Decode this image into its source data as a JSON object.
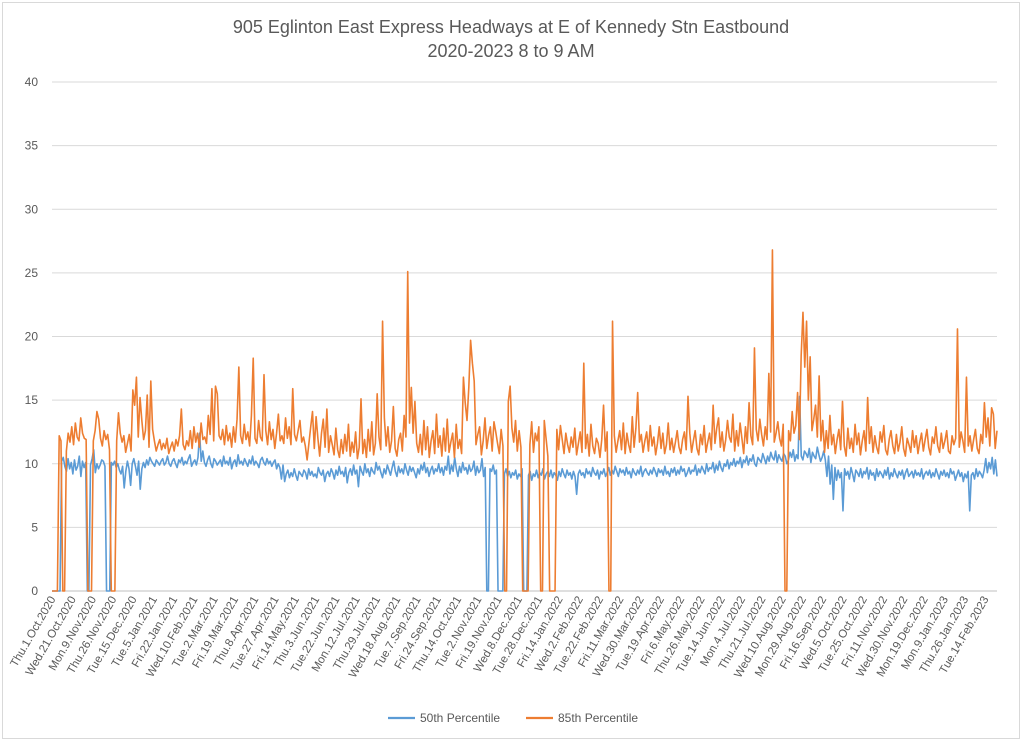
{
  "chart_data": {
    "type": "line",
    "title": "905 Eglinton East Express Headways at E of Kennedy Stn Eastbound",
    "subtitle": "2020-2023 8 to 9 AM",
    "xlabel": "",
    "ylabel": "",
    "ylim": [
      0,
      40
    ],
    "yticks": [
      0,
      5,
      10,
      15,
      20,
      25,
      30,
      35,
      40
    ],
    "grid": true,
    "legend_position": "bottom",
    "x_tick_labels": [
      "Thu.1.Oct.2020",
      "Wed.21.Oct.2020",
      "Mon.9.Nov.2020",
      "Thu.26.Nov.2020",
      "Tue.15.Dec.2020",
      "Tue.5.Jan.2021",
      "Fri.22.Jan.2021",
      "Wed.10.Feb.2021",
      "Tue.2.Mar.2021",
      "Fri.19.Mar.2021",
      "Thu.8.Apr.2021",
      "Tue.27.Apr.2021",
      "Fri.14.May.2021",
      "Thu.3.Jun.2021",
      "Tue.22.Jun.2021",
      "Mon.12.Jul.2021",
      "Thu.29.Jul.2021",
      "Wed.18.Aug.2021",
      "Tue.7.Sep.2021",
      "Fri.24.Sep.2021",
      "Thu.14.Oct.2021",
      "Tue.2.Nov.2021",
      "Fri.19.Nov.2021",
      "Wed.8.Dec.2021",
      "Tue.28.Dec.2021",
      "Fri.14.Jan.2022",
      "Wed.2.Feb.2022",
      "Tue.22.Feb.2022",
      "Fri.11.Mar.2022",
      "Wed.30.Mar.2022",
      "Tue.19.Apr.2022",
      "Fri.6.May.2022",
      "Thu.26.May.2022",
      "Tue.14.Jun.2022",
      "Mon.4.Jul.2022",
      "Thu.21.Jul.2022",
      "Wed.10.Aug.2022",
      "Mon.29.Aug.2022",
      "Fri.16.Sep.2022",
      "Wed.5.Oct.2022",
      "Tue.25.Oct.2022",
      "Fri.11.Nov.2022",
      "Wed.30.Nov.2022",
      "Mon.19.Dec.2022",
      "Mon.9.Jan.2023",
      "Thu.26.Jan.2023",
      "Tue.14.Feb.2023"
    ],
    "n_points": 560,
    "series": [
      {
        "name": "50th Percentile",
        "color": "#5b9bd5",
        "values": [
          0,
          0,
          0,
          0,
          0,
          0,
          10.2,
          10.5,
          9.8,
          9.4,
          10.4,
          9.6,
          10.1,
          9.2,
          10.3,
          9.5,
          9.8,
          10.6,
          9.0,
          10.2,
          9.7,
          10.1,
          0,
          0,
          9.9,
          10.4,
          11.1,
          9.3,
          10.0,
          9.6,
          9.9,
          10.3,
          10.2,
          9.8,
          0,
          0,
          0,
          10.1,
          9.9,
          10.2,
          9.7,
          10.0,
          9.5,
          9.2,
          9.8,
          8.1,
          9.4,
          10.2,
          9.6,
          8.3,
          10.0,
          10.4,
          9.8,
          9.1,
          10.2,
          8.0,
          9.6,
          10.1,
          9.7,
          10.3,
          9.9,
          10.5,
          10.2,
          10.0,
          9.8,
          10.3,
          10.1,
          9.9,
          10.2,
          10.4,
          9.9,
          10.1,
          10.6,
          10.0,
          9.8,
          10.2,
          10.4,
          10.0,
          9.7,
          10.3,
          10.1,
          10.5,
          9.9,
          10.2,
          10.0,
          10.4,
          10.7,
          9.8,
          10.1,
          10.3,
          9.9,
          10.5,
          12.4,
          10.2,
          11.0,
          10.1,
          9.8,
          10.3,
          10.6,
          10.0,
          9.7,
          10.4,
          10.2,
          9.9,
          10.1,
          10.3,
          9.8,
          10.6,
          10.0,
          10.2,
          9.9,
          10.5,
          9.6,
          10.1,
          10.3,
          9.8,
          10.7,
          10.0,
          10.2,
          9.9,
          10.4,
          10.1,
          9.8,
          10.3,
          10.0,
          10.6,
          9.9,
          10.2,
          10.0,
          9.7,
          10.3,
          10.5,
          10.1,
          9.9,
          10.4,
          10.0,
          10.2,
          9.8,
          10.1,
          10.3,
          9.6,
          10.0,
          9.7,
          8.8,
          9.9,
          8.6,
          9.2,
          9.5,
          8.9,
          9.3,
          9.0,
          9.6,
          9.1,
          8.7,
          9.4,
          9.2,
          9.0,
          9.5,
          9.3,
          8.8,
          9.6,
          9.1,
          9.4,
          9.0,
          9.2,
          8.9,
          9.7,
          9.3,
          9.1,
          9.5,
          8.6,
          9.2,
          9.4,
          9.0,
          9.6,
          9.3,
          8.8,
          9.5,
          9.1,
          9.8,
          9.2,
          9.4,
          9.0,
          9.7,
          8.5,
          9.3,
          9.6,
          9.1,
          9.9,
          9.2,
          9.5,
          8.2,
          9.8,
          9.4,
          9.1,
          10.0,
          9.3,
          9.6,
          9.0,
          9.7,
          9.4,
          9.2,
          10.1,
          9.5,
          9.8,
          9.3,
          8.9,
          9.6,
          9.2,
          9.9,
          9.5,
          9.1,
          9.7,
          10.2,
          9.4,
          9.0,
          9.8,
          9.3,
          9.6,
          9.2,
          10.0,
          9.5,
          9.1,
          9.8,
          9.4,
          9.7,
          9.3,
          8.9,
          9.6,
          9.2,
          9.9,
          9.5,
          10.1,
          9.3,
          9.7,
          9.0,
          9.5,
          9.8,
          9.2,
          9.6,
          9.4,
          10.0,
          9.3,
          9.7,
          9.1,
          9.8,
          9.5,
          10.6,
          9.2,
          9.9,
          9.4,
          10.5,
          9.6,
          9.0,
          9.8,
          9.3,
          10.1,
          9.5,
          9.7,
          9.2,
          9.9,
          9.4,
          9.6,
          10.2,
          9.1,
          9.8,
          9.3,
          9.5,
          10.4,
          9.0,
          9.7,
          0,
          0,
          9.6,
          9.4,
          9.9,
          9.2,
          9.5,
          0,
          0,
          0,
          0,
          9.2,
          9.6,
          9.0,
          9.4,
          8.9,
          9.3,
          9.1,
          9.5,
          8.8,
          9.2,
          9.0,
          9.6,
          0,
          0,
          0,
          9.1,
          9.4,
          8.7,
          9.2,
          9.0,
          9.5,
          8.9,
          9.3,
          9.1,
          9.6,
          8.8,
          9.2,
          9.4,
          9.0,
          9.5,
          8.9,
          9.3,
          9.1,
          8.7,
          9.4,
          9.0,
          9.6,
          9.2,
          8.9,
          9.5,
          9.1,
          9.3,
          8.8,
          9.4,
          9.0,
          7.6,
          9.2,
          9.5,
          9.1,
          9.3,
          8.9,
          9.6,
          9.2,
          9.4,
          9.0,
          9.7,
          9.3,
          9.1,
          9.5,
          8.8,
          9.4,
          9.2,
          9.6,
          9.0,
          9.3,
          9.7,
          9.1,
          9.5,
          9.2,
          9.8,
          9.4,
          9.0,
          9.6,
          9.3,
          9.5,
          9.1,
          9.7,
          9.2,
          9.4,
          8.9,
          9.6,
          9.3,
          9.1,
          9.5,
          9.2,
          9.8,
          9.0,
          9.4,
          9.6,
          9.3,
          9.1,
          9.5,
          9.2,
          9.7,
          9.4,
          9.0,
          9.6,
          9.3,
          9.5,
          9.1,
          9.8,
          9.2,
          9.4,
          9.0,
          9.6,
          9.3,
          9.7,
          9.1,
          9.5,
          9.2,
          9.8,
          9.4,
          9.6,
          9.0,
          9.3,
          9.7,
          9.2,
          9.5,
          9.4,
          9.9,
          9.1,
          9.6,
          9.3,
          9.8,
          9.5,
          9.2,
          10.0,
          9.4,
          9.7,
          9.6,
          10.1,
          9.3,
          9.9,
          9.5,
          10.2,
          9.7,
          9.4,
          10.0,
          9.8,
          10.3,
          9.6,
          10.1,
          9.9,
          10.4,
          9.8,
          10.2,
          10.0,
          10.5,
          9.7,
          10.3,
          10.1,
          10.6,
          9.9,
          10.4,
          10.2,
          10.7,
          10.0,
          9.8,
          10.5,
          10.3,
          10.1,
          10.8,
          10.4,
          10.0,
          10.6,
          10.2,
          10.9,
          10.5,
          10.3,
          11.0,
          10.1,
          10.7,
          10.4,
          10.2,
          10.8,
          10.6,
          10.0,
          10.3,
          10.9,
          10.5,
          11.1,
          10.2,
          10.7,
          10.4,
          15.3,
          10.6,
          10.3,
          11.0,
          10.8,
          10.5,
          11.2,
          10.1,
          10.9,
          10.6,
          10.4,
          11.3,
          10.7,
          10.2,
          10.5,
          11.0,
          10.3,
          9.0,
          10.6,
          8.4,
          9.9,
          7.2,
          9.7,
          8.7,
          9.5,
          8.9,
          9.3,
          6.3,
          9.6,
          9.1,
          9.4,
          8.8,
          9.7,
          9.2,
          8.6,
          9.5,
          9.3,
          9.0,
          9.6,
          8.9,
          9.4,
          9.2,
          9.7,
          8.8,
          9.5,
          9.1,
          9.3,
          8.7,
          9.6,
          9.0,
          9.4,
          9.2,
          8.9,
          9.5,
          9.1,
          9.7,
          8.8,
          9.3,
          9.0,
          9.6,
          9.2,
          8.9,
          9.4,
          9.1,
          9.5,
          8.8,
          9.3,
          9.6,
          9.0,
          9.2,
          9.4,
          8.9,
          9.5,
          9.1,
          9.3,
          9.0,
          9.6,
          8.8,
          9.2,
          9.4,
          9.1,
          9.5,
          8.9,
          9.3,
          9.0,
          9.6,
          9.2,
          8.8,
          9.4,
          9.1,
          9.5,
          9.0,
          9.3,
          8.9,
          9.6,
          9.2,
          9.4,
          8.7,
          9.1,
          9.5,
          9.0,
          9.3,
          8.6,
          9.2,
          8.9,
          9.4,
          6.3,
          9.1,
          9.3,
          8.8,
          9.6,
          9.0,
          9.4,
          9.2,
          8.9,
          9.5,
          10.4,
          9.3,
          10.1,
          9.6,
          10.5,
          9.2,
          10.3,
          9.0
        ]
      },
      {
        "name": "85th Percentile",
        "color": "#ed7d31",
        "values": [
          0,
          0,
          0,
          0,
          12.2,
          11.8,
          0,
          0,
          11.0,
          12.4,
          11.7,
          12.9,
          11.5,
          13.2,
          12.1,
          11.8,
          13.6,
          12.4,
          12.0,
          11.9,
          0,
          0,
          0,
          11.8,
          12.6,
          14.1,
          13.5,
          12.0,
          11.4,
          12.6,
          11.9,
          12.3,
          11.1,
          0,
          0,
          0,
          11.8,
          14.0,
          12.4,
          11.7,
          12.2,
          10.9,
          11.6,
          12.3,
          11.0,
          15.8,
          14.6,
          16.8,
          12.1,
          15.2,
          13.4,
          11.9,
          12.6,
          15.4,
          11.3,
          16.5,
          12.7,
          11.8,
          11.0,
          11.5,
          11.9,
          11.1,
          11.6,
          11.2,
          12.0,
          10.8,
          11.3,
          11.7,
          11.0,
          11.9,
          11.4,
          12.2,
          14.3,
          11.5,
          11.1,
          11.8,
          11.4,
          12.6,
          11.2,
          12.9,
          11.7,
          12.4,
          11.3,
          13.2,
          11.9,
          12.1,
          11.6,
          13.8,
          12.3,
          15.9,
          11.8,
          16.1,
          15.5,
          12.2,
          11.9,
          12.7,
          11.5,
          13.0,
          11.8,
          12.4,
          11.3,
          12.9,
          11.7,
          13.5,
          17.6,
          12.2,
          11.6,
          13.1,
          11.9,
          12.5,
          11.4,
          13.8,
          18.3,
          12.0,
          11.6,
          13.4,
          12.1,
          11.8,
          17.0,
          12.6,
          11.5,
          13.3,
          11.9,
          12.7,
          11.2,
          12.4,
          13.9,
          11.8,
          12.2,
          11.6,
          13.6,
          12.0,
          12.9,
          11.5,
          15.9,
          12.3,
          11.8,
          12.6,
          13.4,
          11.7,
          12.1,
          11.4,
          10.3,
          11.6,
          12.9,
          14.1,
          11.2,
          13.7,
          12.0,
          10.6,
          12.4,
          13.5,
          11.3,
          14.3,
          10.9,
          12.2,
          11.5,
          10.7,
          12.8,
          11.1,
          10.5,
          11.9,
          10.8,
          12.3,
          11.0,
          13.1,
          10.6,
          11.7,
          10.9,
          12.5,
          10.4,
          11.3,
          15.1,
          10.8,
          11.9,
          10.5,
          12.7,
          11.0,
          13.3,
          10.7,
          11.6,
          15.5,
          12.1,
          11.1,
          21.2,
          13.6,
          11.4,
          12.9,
          10.9,
          11.8,
          14.5,
          11.2,
          10.6,
          11.9,
          12.4,
          11.0,
          13.8,
          12.1,
          25.1,
          13.2,
          16.0,
          12.4,
          14.9,
          11.6,
          10.9,
          12.3,
          10.7,
          13.4,
          11.1,
          12.9,
          10.5,
          11.8,
          12.6,
          10.8,
          13.9,
          11.3,
          12.2,
          10.6,
          12.8,
          11.0,
          13.5,
          10.9,
          11.7,
          12.4,
          10.5,
          13.1,
          11.2,
          11.9,
          10.8,
          16.8,
          14.8,
          13.4,
          16.0,
          19.7,
          17.9,
          16.5,
          11.5,
          12.3,
          12.9,
          10.7,
          11.8,
          13.6,
          11.2,
          12.2,
          12.9,
          11.0,
          13.3,
          12.5,
          11.6,
          10.8,
          12.7,
          11.4,
          0,
          0,
          14.9,
          16.1,
          12.8,
          11.7,
          13.4,
          11.0,
          12.6,
          11.3,
          0,
          0,
          0,
          0,
          11.5,
          13.3,
          10.9,
          12.4,
          11.8,
          12.9,
          0,
          0,
          13.4,
          12.0,
          10.6,
          0,
          0,
          0,
          0,
          12.7,
          11.1,
          13.0,
          11.9,
          10.8,
          12.4,
          11.5,
          10.9,
          12.1,
          11.3,
          12.8,
          10.7,
          11.6,
          12.5,
          10.9,
          17.9,
          11.2,
          12.3,
          10.6,
          13.1,
          11.4,
          10.8,
          12.0,
          11.6,
          10.5,
          11.9,
          14.6,
          11.0,
          12.5,
          0,
          0,
          21.2,
          12.2,
          10.9,
          11.8,
          12.6,
          11.1,
          13.2,
          10.8,
          12.4,
          11.5,
          10.9,
          13.7,
          11.3,
          12.8,
          15.6,
          11.7,
          12.3,
          10.9,
          11.8,
          12.5,
          11.0,
          13.0,
          11.4,
          12.1,
          10.7,
          11.6,
          12.9,
          11.2,
          12.4,
          10.8,
          11.5,
          13.2,
          11.1,
          12.0,
          10.9,
          11.7,
          12.6,
          11.3,
          10.8,
          11.9,
          12.5,
          11.1,
          15.3,
          12.4,
          10.9,
          11.8,
          12.6,
          11.2,
          10.7,
          12.3,
          11.5,
          13.0,
          10.9,
          11.7,
          12.4,
          11.1,
          14.6,
          11.6,
          12.8,
          13.6,
          11.3,
          12.5,
          11.0,
          11.9,
          13.4,
          12.1,
          11.7,
          13.9,
          11.0,
          12.6,
          11.4,
          13.2,
          12.0,
          10.8,
          12.9,
          11.6,
          14.8,
          12.2,
          11.5,
          19.1,
          12.7,
          11.8,
          13.5,
          12.3,
          11.4,
          12.9,
          11.9,
          17.1,
          12.5,
          26.8,
          11.7,
          12.4,
          13.3,
          12.0,
          11.4,
          13.1,
          0,
          0,
          12.6,
          11.8,
          14.1,
          12.4,
          13.0,
          15.6,
          11.9,
          18.5,
          21.9,
          17.6,
          21.2,
          15.0,
          18.4,
          12.6,
          13.5,
          14.6,
          12.1,
          16.9,
          11.8,
          13.4,
          10.9,
          12.6,
          11.2,
          13.8,
          11.5,
          12.3,
          10.8,
          11.9,
          12.7,
          11.1,
          14.9,
          11.4,
          10.6,
          12.8,
          11.2,
          12.0,
          10.9,
          13.1,
          11.5,
          12.4,
          10.7,
          11.8,
          12.6,
          11.0,
          15.2,
          11.6,
          12.9,
          10.9,
          12.2,
          11.3,
          10.8,
          12.5,
          11.7,
          13.0,
          11.1,
          10.7,
          11.9,
          12.6,
          11.4,
          10.8,
          12.3,
          11.0,
          11.7,
          12.9,
          11.2,
          10.6,
          12.0,
          11.5,
          10.9,
          12.6,
          11.3,
          12.2,
          10.8,
          11.7,
          12.4,
          11.0,
          11.9,
          12.7,
          11.3,
          10.7,
          12.1,
          11.6,
          12.9,
          11.4,
          10.9,
          12.4,
          11.2,
          11.8,
          12.6,
          11.0,
          10.8,
          12.2,
          11.5,
          12.0,
          20.6,
          11.3,
          12.5,
          11.8,
          10.9,
          16.8,
          11.4,
          12.2,
          11.0,
          11.9,
          12.7,
          11.2,
          10.8,
          12.3,
          11.6,
          14.8,
          12.1,
          13.6,
          11.4,
          14.4,
          13.9,
          11.2,
          12.6
        ]
      }
    ]
  }
}
